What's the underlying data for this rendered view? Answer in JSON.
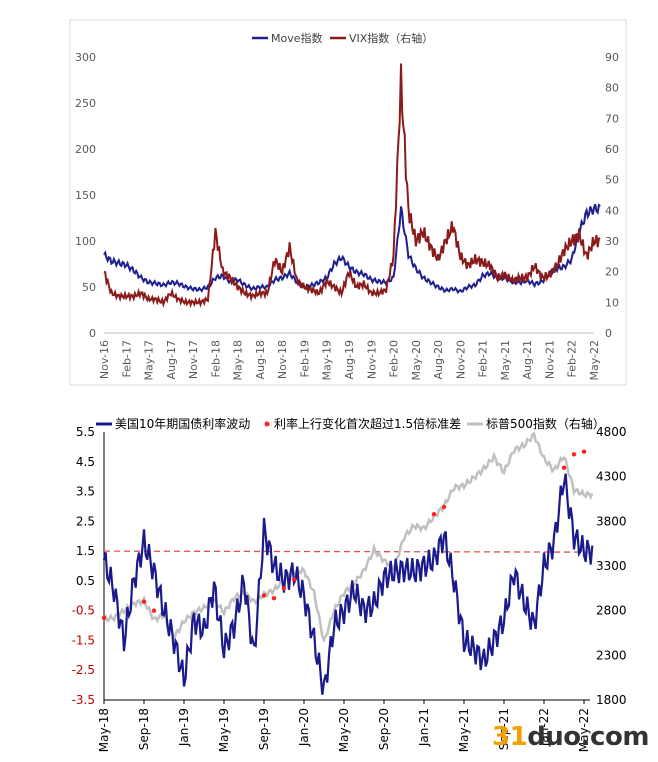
{
  "chart_data": [
    {
      "type": "line",
      "legend_position": "top",
      "grid": false,
      "x_ticks": [
        "Nov-16",
        "Feb-17",
        "May-17",
        "Aug-17",
        "Nov-17",
        "Feb-18",
        "May-18",
        "Aug-18",
        "Nov-18",
        "Feb-19",
        "May-19",
        "Aug-19",
        "Nov-19",
        "Feb-20",
        "May-20",
        "Aug-20",
        "Nov-20",
        "Feb-21",
        "May-21",
        "Aug-21",
        "Nov-21",
        "Feb-22",
        "May-22"
      ],
      "y_left_ticks": [
        "0",
        "50",
        "100",
        "150",
        "200",
        "250",
        "300"
      ],
      "y_right_ticks": [
        "0",
        "10",
        "20",
        "30",
        "40",
        "50",
        "60",
        "70",
        "80",
        "90"
      ],
      "y_left_lim": [
        0,
        300
      ],
      "y_right_lim": [
        0,
        90
      ],
      "series": [
        {
          "name": "Move指数",
          "axis": "left",
          "color": "#1f1f8f",
          "x": [
            "2016-11",
            "2016-12",
            "2017-01",
            "2017-02",
            "2017-03",
            "2017-04",
            "2017-05",
            "2017-06",
            "2017-07",
            "2017-08",
            "2017-09",
            "2017-10",
            "2017-11",
            "2017-12",
            "2018-01",
            "2018-02",
            "2018-03",
            "2018-04",
            "2018-05",
            "2018-06",
            "2018-07",
            "2018-08",
            "2018-09",
            "2018-10",
            "2018-11",
            "2018-12",
            "2019-01",
            "2019-02",
            "2019-03",
            "2019-04",
            "2019-05",
            "2019-06",
            "2019-07",
            "2019-08",
            "2019-09",
            "2019-10",
            "2019-11",
            "2019-12",
            "2020-01",
            "2020-02",
            "2020-03",
            "2020-04",
            "2020-05",
            "2020-06",
            "2020-07",
            "2020-08",
            "2020-09",
            "2020-10",
            "2020-11",
            "2020-12",
            "2021-01",
            "2021-02",
            "2021-03",
            "2021-04",
            "2021-05",
            "2021-06",
            "2021-07",
            "2021-08",
            "2021-09",
            "2021-10",
            "2021-11",
            "2021-12",
            "2022-01",
            "2022-02",
            "2022-03",
            "2022-04",
            "2022-05"
          ],
          "values": [
            85,
            78,
            76,
            74,
            68,
            60,
            55,
            54,
            52,
            55,
            54,
            50,
            48,
            47,
            50,
            60,
            62,
            56,
            58,
            52,
            48,
            50,
            50,
            58,
            60,
            65,
            55,
            50,
            52,
            55,
            60,
            75,
            82,
            72,
            66,
            64,
            58,
            56,
            55,
            60,
            135,
            85,
            70,
            60,
            55,
            50,
            46,
            48,
            45,
            50,
            52,
            62,
            65,
            60,
            60,
            56,
            55,
            57,
            53,
            56,
            65,
            70,
            72,
            80,
            110,
            130,
            135
          ]
        },
        {
          "name": "VIX指数（右轴）",
          "axis": "right",
          "color": "#8b1a1a",
          "x": [
            "2016-11",
            "2016-12",
            "2017-01",
            "2017-02",
            "2017-03",
            "2017-04",
            "2017-05",
            "2017-06",
            "2017-07",
            "2017-08",
            "2017-09",
            "2017-10",
            "2017-11",
            "2017-12",
            "2018-01",
            "2018-02",
            "2018-03",
            "2018-04",
            "2018-05",
            "2018-06",
            "2018-07",
            "2018-08",
            "2018-09",
            "2018-10",
            "2018-11",
            "2018-12",
            "2019-01",
            "2019-02",
            "2019-03",
            "2019-04",
            "2019-05",
            "2019-06",
            "2019-07",
            "2019-08",
            "2019-09",
            "2019-10",
            "2019-11",
            "2019-12",
            "2020-01",
            "2020-02",
            "2020-03",
            "2020-04",
            "2020-05",
            "2020-06",
            "2020-07",
            "2020-08",
            "2020-09",
            "2020-10",
            "2020-11",
            "2020-12",
            "2021-01",
            "2021-02",
            "2021-03",
            "2021-04",
            "2021-05",
            "2021-06",
            "2021-07",
            "2021-08",
            "2021-09",
            "2021-10",
            "2021-11",
            "2021-12",
            "2022-01",
            "2022-02",
            "2022-03",
            "2022-04",
            "2022-05"
          ],
          "values": [
            20,
            13,
            12,
            12,
            12,
            13,
            11,
            11,
            10,
            13,
            11,
            10,
            10,
            10,
            11,
            33,
            20,
            18,
            15,
            13,
            12,
            13,
            13,
            24,
            20,
            28,
            17,
            15,
            14,
            13,
            17,
            15,
            13,
            20,
            15,
            16,
            13,
            13,
            14,
            25,
            82,
            40,
            30,
            33,
            28,
            24,
            30,
            35,
            25,
            22,
            24,
            23,
            22,
            18,
            19,
            17,
            18,
            18,
            22,
            18,
            19,
            22,
            27,
            30,
            32,
            25,
            30
          ]
        },
        {
          "name": "",
          "axis": "right",
          "color": "#8b1a1a",
          "x": [],
          "values": []
        }
      ],
      "legend": [
        "Move指数",
        "VIX指数（右轴）"
      ]
    },
    {
      "type": "line",
      "legend_position": "top",
      "grid": false,
      "x_ticks": [
        "May-18",
        "Sep-18",
        "Jan-19",
        "May-19",
        "Sep-19",
        "Jan-20",
        "May-20",
        "Sep-20",
        "Jan-21",
        "May-21",
        "Sep-21",
        "Jan-22",
        "May-22"
      ],
      "y_left_ticks": [
        "5.5",
        "4.5",
        "3.5",
        "2.5",
        "1.5",
        "0.5",
        "-0.5",
        "-1.5",
        "-2.5",
        "-3.5"
      ],
      "y_right_ticks": [
        "4800",
        "4300",
        "3800",
        "3300",
        "2800",
        "2300",
        "1800"
      ],
      "y_left_lim": [
        -3.5,
        5.5
      ],
      "y_right_lim": [
        1800,
        4800
      ],
      "threshold_line": 1.5,
      "legend": [
        "美国10年期国债利率波动",
        "利率上行变化首次超过1.5倍标准差",
        "标普500指数（右轴）"
      ],
      "series": [
        {
          "name": "美国10年期国债利率波动",
          "axis": "left",
          "color": "#1a1a8c",
          "x": [
            "2018-05",
            "2018-06",
            "2018-07",
            "2018-08",
            "2018-09",
            "2018-10",
            "2018-11",
            "2018-12",
            "2019-01",
            "2019-02",
            "2019-03",
            "2019-04",
            "2019-05",
            "2019-06",
            "2019-07",
            "2019-08",
            "2019-09",
            "2019-10",
            "2019-11",
            "2019-12",
            "2020-01",
            "2020-02",
            "2020-03",
            "2020-04",
            "2020-05",
            "2020-06",
            "2020-07",
            "2020-08",
            "2020-09",
            "2020-10",
            "2020-11",
            "2020-12",
            "2021-01",
            "2021-02",
            "2021-03",
            "2021-04",
            "2021-05",
            "2021-06",
            "2021-07",
            "2021-08",
            "2021-09",
            "2021-10",
            "2021-11",
            "2021-12",
            "2022-01",
            "2022-02",
            "2022-03",
            "2022-04",
            "2022-05"
          ],
          "values": [
            1.2,
            0.2,
            -1.5,
            0.5,
            1.8,
            0.8,
            -0.5,
            -1.5,
            -2.8,
            -0.8,
            -1.2,
            0.3,
            -1.8,
            -1.0,
            0.5,
            -2.0,
            2.2,
            1.0,
            0.5,
            0.8,
            0.0,
            -1.5,
            -3.2,
            -1.0,
            -0.5,
            0.2,
            -0.5,
            -0.3,
            0.6,
            0.8,
            0.9,
            0.8,
            1.0,
            1.2,
            2.0,
            0.5,
            -1.5,
            -1.8,
            -2.2,
            -1.5,
            -0.8,
            0.8,
            -0.2,
            -1.0,
            1.0,
            1.8,
            4.0,
            2.0,
            1.5
          ]
        },
        {
          "name": "利率上行变化首次超过1.5倍标准差",
          "axis": "right",
          "color": "#ff2020",
          "x": [
            "2018-05",
            "2018-09",
            "2018-10",
            "2019-09",
            "2019-10",
            "2019-11",
            "2019-12",
            "2021-02",
            "2021-03",
            "2022-03",
            "2022-04",
            "2022-05"
          ],
          "values": [
            2720,
            2900,
            2800,
            2970,
            2940,
            3050,
            3150,
            3880,
            3960,
            4400,
            4550,
            4580
          ]
        },
        {
          "name": "标普500指数（右轴）",
          "axis": "right",
          "color": "#c0c0c0",
          "x": [
            "2018-05",
            "2018-06",
            "2018-07",
            "2018-08",
            "2018-09",
            "2018-10",
            "2018-11",
            "2018-12",
            "2019-01",
            "2019-02",
            "2019-03",
            "2019-04",
            "2019-05",
            "2019-06",
            "2019-07",
            "2019-08",
            "2019-09",
            "2019-10",
            "2019-11",
            "2019-12",
            "2020-01",
            "2020-02",
            "2020-03",
            "2020-04",
            "2020-05",
            "2020-06",
            "2020-07",
            "2020-08",
            "2020-09",
            "2020-10",
            "2020-11",
            "2020-12",
            "2021-01",
            "2021-02",
            "2021-03",
            "2021-04",
            "2021-05",
            "2021-06",
            "2021-07",
            "2021-08",
            "2021-09",
            "2021-10",
            "2021-11",
            "2021-12",
            "2022-01",
            "2022-02",
            "2022-03",
            "2022-04",
            "2022-05"
          ],
          "values": [
            2700,
            2720,
            2800,
            2880,
            2910,
            2700,
            2750,
            2500,
            2680,
            2780,
            2830,
            2920,
            2780,
            2940,
            3000,
            2900,
            2980,
            3030,
            3140,
            3230,
            3250,
            3000,
            2450,
            2800,
            3000,
            3100,
            3250,
            3480,
            3360,
            3280,
            3620,
            3750,
            3720,
            3850,
            3970,
            4180,
            4200,
            4290,
            4390,
            4520,
            4350,
            4600,
            4650,
            4770,
            4500,
            4370,
            4530,
            4150,
            4100
          ]
        }
      ]
    }
  ],
  "watermark": {
    "prefix": "31",
    "rest": "duo.com"
  }
}
